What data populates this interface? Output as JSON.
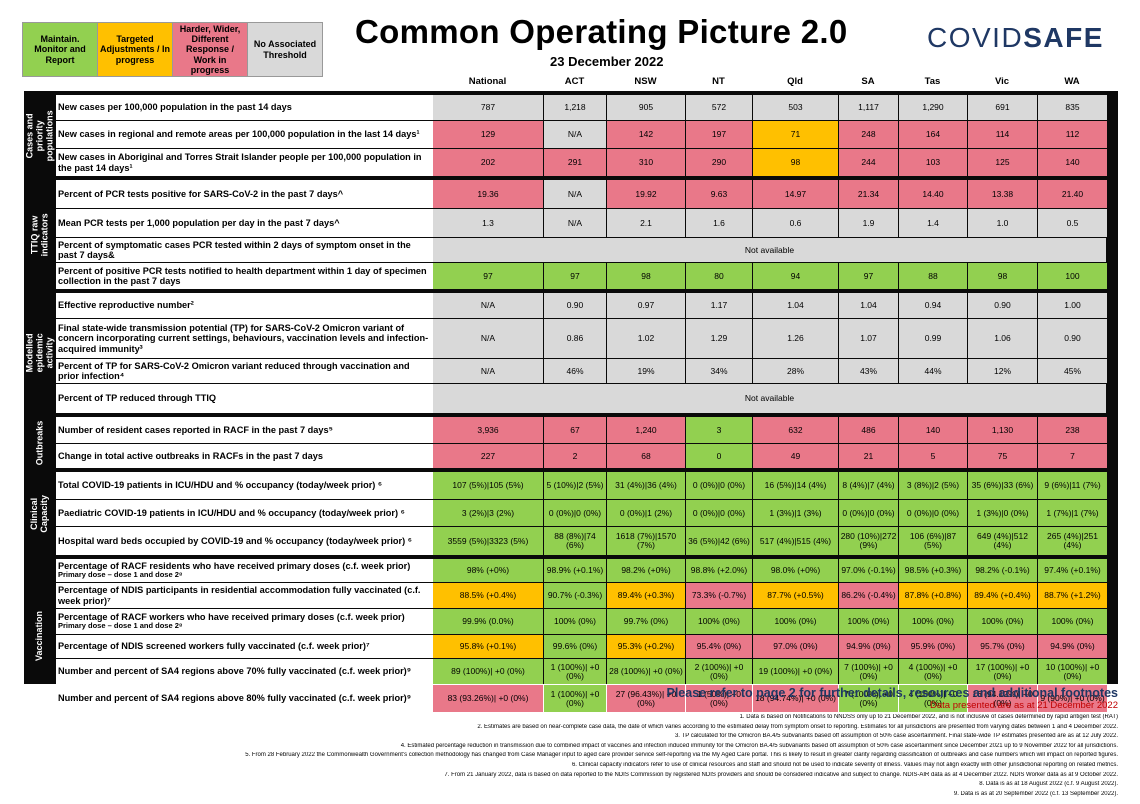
{
  "legend": [
    {
      "label": "Maintain. Monitor and Report",
      "color": "#92d050"
    },
    {
      "label": "Targeted Adjustments / In progress",
      "color": "#ffc000"
    },
    {
      "label": "Harder, Wider, Different Response / Work in progress",
      "color": "#e97889"
    },
    {
      "label": "No Associated Threshold",
      "color": "#d9d9d9"
    }
  ],
  "title": "Common Operating Picture 2.0",
  "date": "23 December 2022",
  "logo": {
    "part1": "COVID",
    "part2": "SAFE"
  },
  "columns": [
    "National",
    "ACT",
    "NSW",
    "NT",
    "Qld",
    "SA",
    "Tas",
    "Vic",
    "WA"
  ],
  "sections": [
    {
      "label": "Cases and priority populations",
      "rows": [
        {
          "indicator": "New cases per 100,000 population in the past 14 days",
          "values": [
            "787",
            "1,218",
            "905",
            "572",
            "503",
            "1,117",
            "1,290",
            "691",
            "835"
          ],
          "colors": [
            "gr",
            "gr",
            "gr",
            "gr",
            "gr",
            "gr",
            "gr",
            "gr",
            "gr"
          ]
        },
        {
          "indicator": "New cases in regional and remote areas per 100,000 population in the last 14 days¹",
          "values": [
            "129",
            "N/A",
            "142",
            "197",
            "71",
            "248",
            "164",
            "114",
            "112"
          ],
          "colors": [
            "r",
            "gr",
            "r",
            "r",
            "o",
            "r",
            "r",
            "r",
            "r"
          ]
        },
        {
          "indicator": "New cases in Aboriginal and Torres Strait Islander people per 100,000 population in the past 14 days¹",
          "values": [
            "202",
            "291",
            "310",
            "290",
            "98",
            "244",
            "103",
            "125",
            "140"
          ],
          "colors": [
            "r",
            "r",
            "r",
            "r",
            "o",
            "r",
            "r",
            "r",
            "r"
          ]
        }
      ]
    },
    {
      "label": "TTIQ raw indicators",
      "rows": [
        {
          "indicator": "Percent of PCR tests positive for SARS-CoV-2 in the past 7 days^",
          "values": [
            "19.36",
            "N/A",
            "19.92",
            "9.63",
            "14.97",
            "21.34",
            "14.40",
            "13.38",
            "21.40"
          ],
          "colors": [
            "r",
            "gr",
            "r",
            "r",
            "r",
            "r",
            "r",
            "r",
            "r"
          ]
        },
        {
          "indicator": "Mean PCR tests per 1,000 population per day in the past 7 days^",
          "values": [
            "1.3",
            "N/A",
            "2.1",
            "1.6",
            "0.6",
            "1.9",
            "1.4",
            "1.0",
            "0.5"
          ],
          "colors": [
            "gr",
            "gr",
            "gr",
            "gr",
            "gr",
            "gr",
            "gr",
            "gr",
            "gr"
          ]
        },
        {
          "indicator": "Percent of symptomatic cases PCR tested within 2 days of symptom onset in the past 7 days&",
          "merged": "Not available"
        },
        {
          "indicator": "Percent of positive PCR tests notified to health department within 1 day of specimen collection in the past 7 days",
          "values": [
            "97",
            "97",
            "98",
            "80",
            "94",
            "97",
            "88",
            "98",
            "100"
          ],
          "colors": [
            "g",
            "g",
            "g",
            "g",
            "g",
            "g",
            "g",
            "g",
            "g"
          ]
        }
      ]
    },
    {
      "label": "Modelled epidemic activity",
      "rows": [
        {
          "indicator": "Effective reproductive number²",
          "values": [
            "N/A",
            "0.90",
            "0.97",
            "1.17",
            "1.04",
            "1.04",
            "0.94",
            "0.90",
            "1.00"
          ],
          "colors": [
            "gr",
            "gr",
            "gr",
            "gr",
            "gr",
            "gr",
            "gr",
            "gr",
            "gr"
          ]
        },
        {
          "indicator": "Final state-wide transmission potential (TP) for SARS-CoV-2 Omicron variant of concern incorporating current settings, behaviours, vaccination levels and infection-acquired immunity³",
          "values": [
            "N/A",
            "0.86",
            "1.02",
            "1.29",
            "1.26",
            "1.07",
            "0.99",
            "1.06",
            "0.90"
          ],
          "colors": [
            "gr",
            "gr",
            "gr",
            "gr",
            "gr",
            "gr",
            "gr",
            "gr",
            "gr"
          ]
        },
        {
          "indicator": "Percent of TP  for SARS-CoV-2 Omicron variant reduced through vaccination and prior infection⁴",
          "values": [
            "N/A",
            "46%",
            "19%",
            "34%",
            "28%",
            "43%",
            "44%",
            "12%",
            "45%"
          ],
          "colors": [
            "gr",
            "gr",
            "gr",
            "gr",
            "gr",
            "gr",
            "gr",
            "gr",
            "gr"
          ]
        },
        {
          "indicator": "Percent of TP reduced through TTIQ",
          "merged": "Not available"
        }
      ]
    },
    {
      "label": "Outbreaks",
      "rows": [
        {
          "indicator": "Number of resident cases reported in RACF in the past 7 days⁵",
          "values": [
            "3,936",
            "67",
            "1,240",
            "3",
            "632",
            "486",
            "140",
            "1,130",
            "238"
          ],
          "colors": [
            "r",
            "r",
            "r",
            "g",
            "r",
            "r",
            "r",
            "r",
            "r"
          ]
        },
        {
          "indicator": "Change in total active outbreaks in RACFs in the past 7 days",
          "values": [
            "227",
            "2",
            "68",
            "0",
            "49",
            "21",
            "5",
            "75",
            "7"
          ],
          "colors": [
            "r",
            "r",
            "r",
            "g",
            "r",
            "r",
            "r",
            "r",
            "r"
          ]
        }
      ]
    },
    {
      "label": "Clinical Capacity",
      "rows": [
        {
          "indicator": "Total COVID-19 patients in ICU/HDU and % occupancy (today/week prior) ⁶",
          "values": [
            "107 (5%)|105 (5%)",
            "5 (10%)|2 (5%)",
            "31 (4%)|36 (4%)",
            "0 (0%)|0 (0%)",
            "16 (5%)|14 (4%)",
            "8 (4%)|7 (4%)",
            "3 (8%)|2 (5%)",
            "35 (6%)|33 (6%)",
            "9 (6%)|11 (7%)"
          ],
          "colors": [
            "g",
            "g",
            "g",
            "g",
            "g",
            "g",
            "g",
            "g",
            "g"
          ]
        },
        {
          "indicator": "Paediatric COVID-19 patients in ICU/HDU and % occupancy (today/week prior) ⁶",
          "values": [
            "3 (2%)|3 (2%)",
            "0 (0%)|0 (0%)",
            "0 (0%)|1 (2%)",
            "0 (0%)|0 (0%)",
            "1 (3%)|1 (3%)",
            "0 (0%)|0 (0%)",
            "0 (0%)|0 (0%)",
            "1 (3%)|0 (0%)",
            "1 (7%)|1 (7%)"
          ],
          "colors": [
            "g",
            "g",
            "g",
            "g",
            "g",
            "g",
            "g",
            "g",
            "g"
          ]
        },
        {
          "indicator": "Hospital ward beds occupied by COVID-19 and % occupancy (today/week prior) ⁶",
          "values": [
            "3559 (5%)|3323 (5%)",
            "88 (8%)|74 (6%)",
            "1618 (7%)|1570 (7%)",
            "36 (5%)|42 (6%)",
            "517 (4%)|515 (4%)",
            "280 (10%)|272 (9%)",
            "106 (6%)|87 (5%)",
            "649 (4%)|512 (4%)",
            "265 (4%)|251 (4%)"
          ],
          "colors": [
            "g",
            "g",
            "g",
            "g",
            "g",
            "g",
            "g",
            "g",
            "g"
          ]
        }
      ]
    },
    {
      "label": "Vaccination",
      "rows": [
        {
          "indicator": "Percentage of RACF residents who have received primary doses (c.f. week prior)",
          "sub": "Primary dose – dose 1 and dose 2⁸",
          "values": [
            "98% (+0%)",
            "98.9% (+0.1%)",
            "98.2% (+0%)",
            "98.8% (+2.0%)",
            "98.0% (+0%)",
            "97.0% (-0.1%)",
            "98.5% (+0.3%)",
            "98.2% (-0.1%)",
            "97.4% (+0.1%)"
          ],
          "colors": [
            "g",
            "g",
            "g",
            "g",
            "g",
            "g",
            "g",
            "g",
            "g"
          ]
        },
        {
          "indicator": "Percentage of NDIS participants in residential accommodation fully vaccinated (c.f. week prior)⁷",
          "values": [
            "88.5% (+0.4%)",
            "90.7% (-0.3%)",
            "89.4% (+0.3%)",
            "73.3% (-0.7%)",
            "87.7% (+0.5%)",
            "86.2% (-0.4%)",
            "87.8% (+0.8%)",
            "89.4% (+0.4%)",
            "88.7% (+1.2%)"
          ],
          "colors": [
            "o",
            "g",
            "o",
            "r",
            "o",
            "r",
            "o",
            "o",
            "o"
          ]
        },
        {
          "indicator": "Percentage of RACF workers who have received primary doses (c.f. week prior)",
          "sub": "Primary dose – dose 1 and dose 2⁸",
          "values": [
            "99.9% (0.0%)",
            "100% (0%)",
            "99.7% (0%)",
            "100% (0%)",
            "100% (0%)",
            "100% (0%)",
            "100% (0%)",
            "100% (0%)",
            "100% (0%)"
          ],
          "colors": [
            "g",
            "g",
            "g",
            "g",
            "g",
            "g",
            "g",
            "g",
            "g"
          ]
        },
        {
          "indicator": "Percentage of NDIS screened workers fully vaccinated (c.f. week prior)⁷",
          "values": [
            "95.8% (+0.1%)",
            "99.6% (0%)",
            "95.3% (+0.2%)",
            "95.4% (0%)",
            "97.0% (0%)",
            "94.9% (0%)",
            "95.9% (0%)",
            "95.7% (0%)",
            "94.9% (0%)"
          ],
          "colors": [
            "o",
            "g",
            "o",
            "r",
            "r",
            "r",
            "r",
            "r",
            "r"
          ]
        },
        {
          "indicator": "Number and percent of SA4 regions above 70% fully vaccinated (c.f. week prior)⁹",
          "values": [
            "89 (100%)| +0 (0%)",
            "1 (100%)| +0 (0%)",
            "28 (100%)| +0 (0%)",
            "2 (100%)| +0 (0%)",
            "19 (100%)| +0 (0%)",
            "7 (100%)| +0 (0%)",
            "4 (100%)| +0 (0%)",
            "17 (100%)| +0 (0%)",
            "10 (100%)| +0 (0%)"
          ],
          "colors": [
            "g",
            "g",
            "g",
            "g",
            "g",
            "g",
            "g",
            "g",
            "g"
          ]
        },
        {
          "indicator": "Number and percent of SA4 regions above 80% fully vaccinated (c.f. week prior)⁹",
          "values": [
            "83 (93.26%)| +0 (0%)",
            "1 (100%)| +0 (0%)",
            "27 (96.43%)| +0 (0%)",
            "1 (50%)| +0 (0%)",
            "18 (94.74%)| +0 (0%)",
            "7 (100%)| +0 (0%)",
            "4 (100%)| +0 (0%)",
            "16 (94.12%)| +0 (0%)",
            "9 (90%)| +0 (0%)"
          ],
          "colors": [
            "r",
            "g",
            "r",
            "r",
            "r",
            "g",
            "g",
            "r",
            "r"
          ]
        }
      ]
    }
  ],
  "refer_note": "Please refer to page 2 for further details, resources and additional footnotes",
  "data_presented": "Data presented are as at 21 December 2022",
  "footnotes": [
    "1.      Data is based on Notifications to NNDSS only up to 21 December 2022, and is not inclusive of cases determined by rapid antigen test (RAT)",
    "2. Estimates are based on near-complete case data, the date of which varies according to the estimated delay from symptom onset to reporting. Estimates for all jurisdictions are presented from varying dates between 1 and 4 December 2022.",
    "3. TP calculated for the Omicron BA.4/5 subvariants based off assumption of 50% case ascertainment. Final state-wide TP estimates presented are as at 12 July 2022.",
    "4. Estimated percentage reduction in transmission due to combined impact of vaccines and infection induced immunity for the Omicron BA.4/5 subvariants based off assumption of 50% case ascertainment since December 2021 up to 9 November 2022 for all jurisdictions.",
    "5. From 28 February 2022 the Commonwealth Government's collection methodology has changed from Case Manager input to aged care provider service self-reporting via the My Aged Care portal. This is likely to result in greater clarity regarding classification of outbreaks and case numbers which will impact on reported figures.",
    "6. Clinical capacity indicators refer to use of clinical resources and staff and should not be used to indicate severity of illness. Values may not align exactly with other jurisdictional reporting on related metrics.",
    "7. From 21 January 2022, data is based on data reported to the NDIS Commission by registered NDIS providers and should be considered indicative and subject to change. NDIS-AIR data as at 4 December 2022. NDIS Worker data as at 9 October 2022.",
    "8. Data is as at 18 August 2022 (c.f. 9 August 2022).",
    "9. Data is as at 20 September 2022 (c.f. 13 September 2022)."
  ]
}
